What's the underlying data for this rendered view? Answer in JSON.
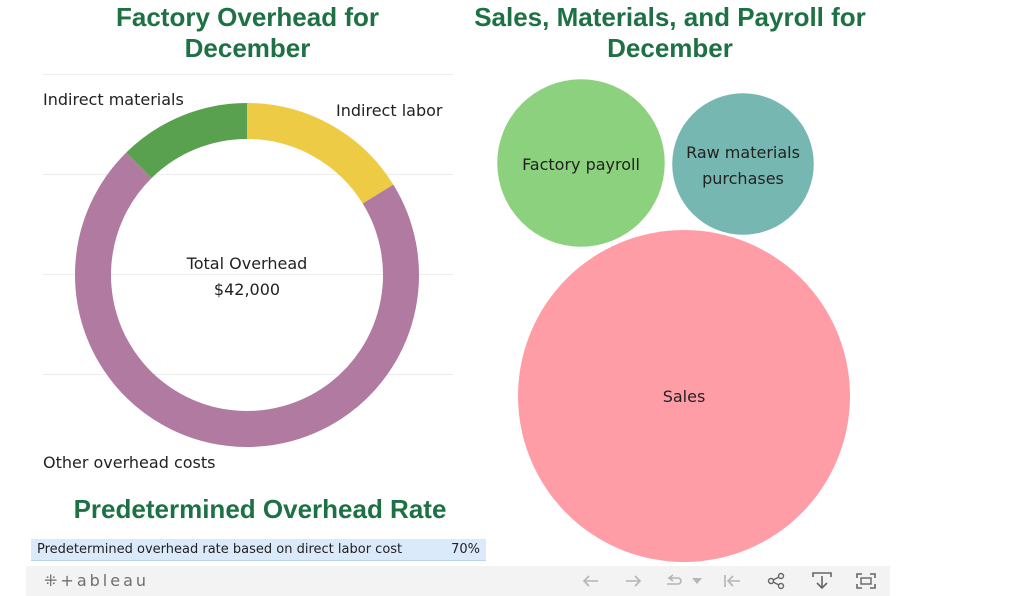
{
  "donut": {
    "title": "Factory Overhead for December",
    "center_line1": "Total Overhead",
    "center_line2": "$42,000",
    "labels": {
      "indirect_materials": "Indirect materials",
      "indirect_labor": "Indirect labor",
      "other": "Other overhead costs"
    }
  },
  "bubbles": {
    "title": "Sales, Materials, and Payroll for December",
    "labels": {
      "payroll": "Factory payroll",
      "raw_line1": "Raw materials",
      "raw_line2": "purchases",
      "sales": "Sales"
    }
  },
  "rate": {
    "title": "Predetermined Overhead Rate",
    "label": "Predetermined overhead rate based on direct labor cost",
    "value": "70%"
  },
  "toolbar": {
    "logo": "⁜+ableau",
    "icons": [
      "undo-icon",
      "redo-icon",
      "revert-icon",
      "dropdown-icon",
      "reset-icon",
      "share-icon",
      "download-icon",
      "fullscreen-icon"
    ]
  },
  "chart_data": [
    {
      "type": "pie",
      "title": "Factory Overhead for December",
      "hole": true,
      "total": 42000,
      "categories": [
        "Indirect labor",
        "Other overhead costs",
        "Indirect materials"
      ],
      "values": [
        6800,
        30000,
        5200
      ],
      "colors": [
        "#eecb45",
        "#b07aa1",
        "#59a14f"
      ]
    },
    {
      "type": "scatter",
      "subtype": "packed-bubble",
      "title": "Sales, Materials, and Payroll for December",
      "categories": [
        "Sales",
        "Factory payroll",
        "Raw materials purchases"
      ],
      "values": [
        110000,
        28000,
        20000
      ],
      "colors": [
        "#ff9da7",
        "#8cd17d",
        "#76b7b2"
      ]
    }
  ]
}
